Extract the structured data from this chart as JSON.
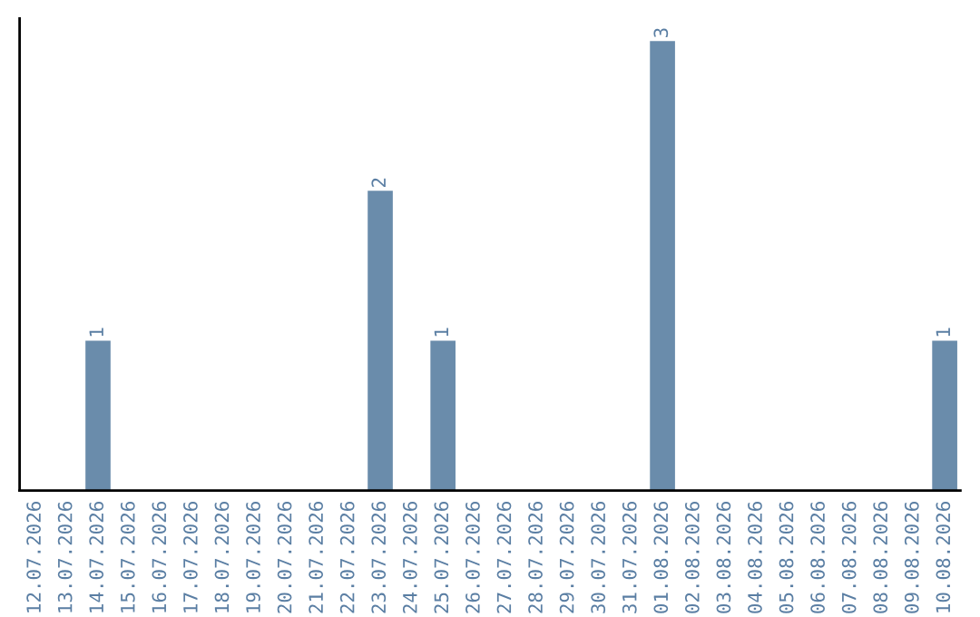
{
  "chart_data": {
    "type": "bar",
    "categories": [
      "12.07.2026",
      "13.07.2026",
      "14.07.2026",
      "15.07.2026",
      "16.07.2026",
      "17.07.2026",
      "18.07.2026",
      "19.07.2026",
      "20.07.2026",
      "21.07.2026",
      "22.07.2026",
      "23.07.2026",
      "24.07.2026",
      "25.07.2026",
      "26.07.2026",
      "27.07.2026",
      "28.07.2026",
      "29.07.2026",
      "30.07.2026",
      "31.07.2026",
      "01.08.2026",
      "02.08.2026",
      "03.08.2026",
      "04.08.2026",
      "05.08.2026",
      "06.08.2026",
      "07.08.2026",
      "08.08.2026",
      "09.08.2026",
      "10.08.2026"
    ],
    "values": [
      0,
      0,
      1,
      0,
      0,
      0,
      0,
      0,
      0,
      0,
      0,
      2,
      0,
      1,
      0,
      0,
      0,
      0,
      0,
      0,
      3,
      0,
      0,
      0,
      0,
      0,
      0,
      0,
      0,
      1
    ],
    "value_labels": [
      null,
      null,
      "1",
      null,
      null,
      null,
      null,
      null,
      null,
      null,
      null,
      "2",
      null,
      "1",
      null,
      null,
      null,
      null,
      null,
      null,
      "3",
      null,
      null,
      null,
      null,
      null,
      null,
      null,
      null,
      "1"
    ],
    "color": "#6a8cab",
    "tick_labels": "x",
    "grid": false,
    "legend": false
  }
}
